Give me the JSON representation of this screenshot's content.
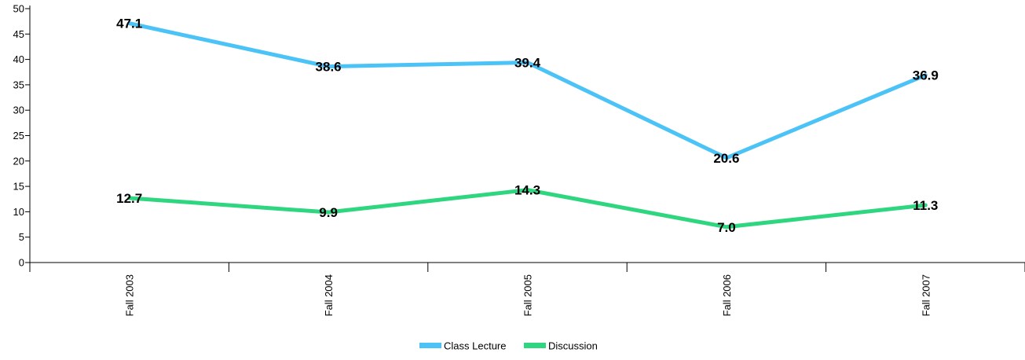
{
  "chart_data": {
    "type": "line",
    "title": "",
    "xlabel": "",
    "ylabel": "",
    "categories": [
      "Fall  2003",
      "Fall  2004",
      "Fall  2005",
      "Fall  2006",
      "Fall  2007"
    ],
    "ylim": [
      0,
      50
    ],
    "yticks": [
      0,
      5,
      10,
      15,
      20,
      25,
      30,
      35,
      40,
      45,
      50
    ],
    "grid": false,
    "legend_position": "bottom-center",
    "series": [
      {
        "name": "Class Lecture",
        "color": "#4cc3f7",
        "values": [
          47.1,
          38.6,
          39.4,
          20.6,
          36.9
        ],
        "labels": [
          "47.1",
          "38.6",
          "39.4",
          "20.6",
          "36.9"
        ]
      },
      {
        "name": "Discussion",
        "color": "#2ed67f",
        "values": [
          12.7,
          9.9,
          14.3,
          7.0,
          11.3
        ],
        "labels": [
          "12.7",
          "9.9",
          "14.3",
          "7.0",
          "11.3"
        ]
      }
    ]
  }
}
